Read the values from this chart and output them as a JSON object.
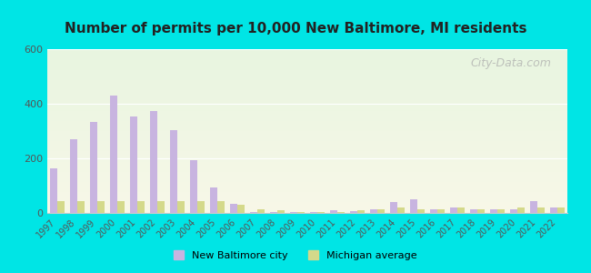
{
  "title": "Number of permits per 10,000 New Baltimore, MI residents",
  "years": [
    1997,
    1998,
    1999,
    2000,
    2001,
    2002,
    2003,
    2004,
    2005,
    2006,
    2007,
    2008,
    2009,
    2010,
    2011,
    2012,
    2013,
    2014,
    2015,
    2016,
    2017,
    2018,
    2019,
    2020,
    2021,
    2022
  ],
  "city_values": [
    165,
    270,
    335,
    430,
    355,
    375,
    305,
    195,
    95,
    35,
    5,
    3,
    2,
    2,
    10,
    8,
    15,
    40,
    50,
    15,
    20,
    15,
    15,
    15,
    45,
    20
  ],
  "avg_values": [
    45,
    45,
    45,
    45,
    45,
    45,
    45,
    45,
    45,
    30,
    15,
    10,
    5,
    5,
    5,
    10,
    15,
    20,
    15,
    15,
    20,
    15,
    15,
    20,
    20,
    20
  ],
  "city_color": "#c8b4e0",
  "avg_color": "#d4d98a",
  "ylim": [
    0,
    600
  ],
  "yticks": [
    0,
    200,
    400,
    600
  ],
  "background_top": "#e8f5e8",
  "background_bottom": "#f5f5e8",
  "outer_bg": "#00e5e5",
  "legend_city": "New Baltimore city",
  "legend_avg": "Michigan average",
  "watermark": "City-Data.com"
}
